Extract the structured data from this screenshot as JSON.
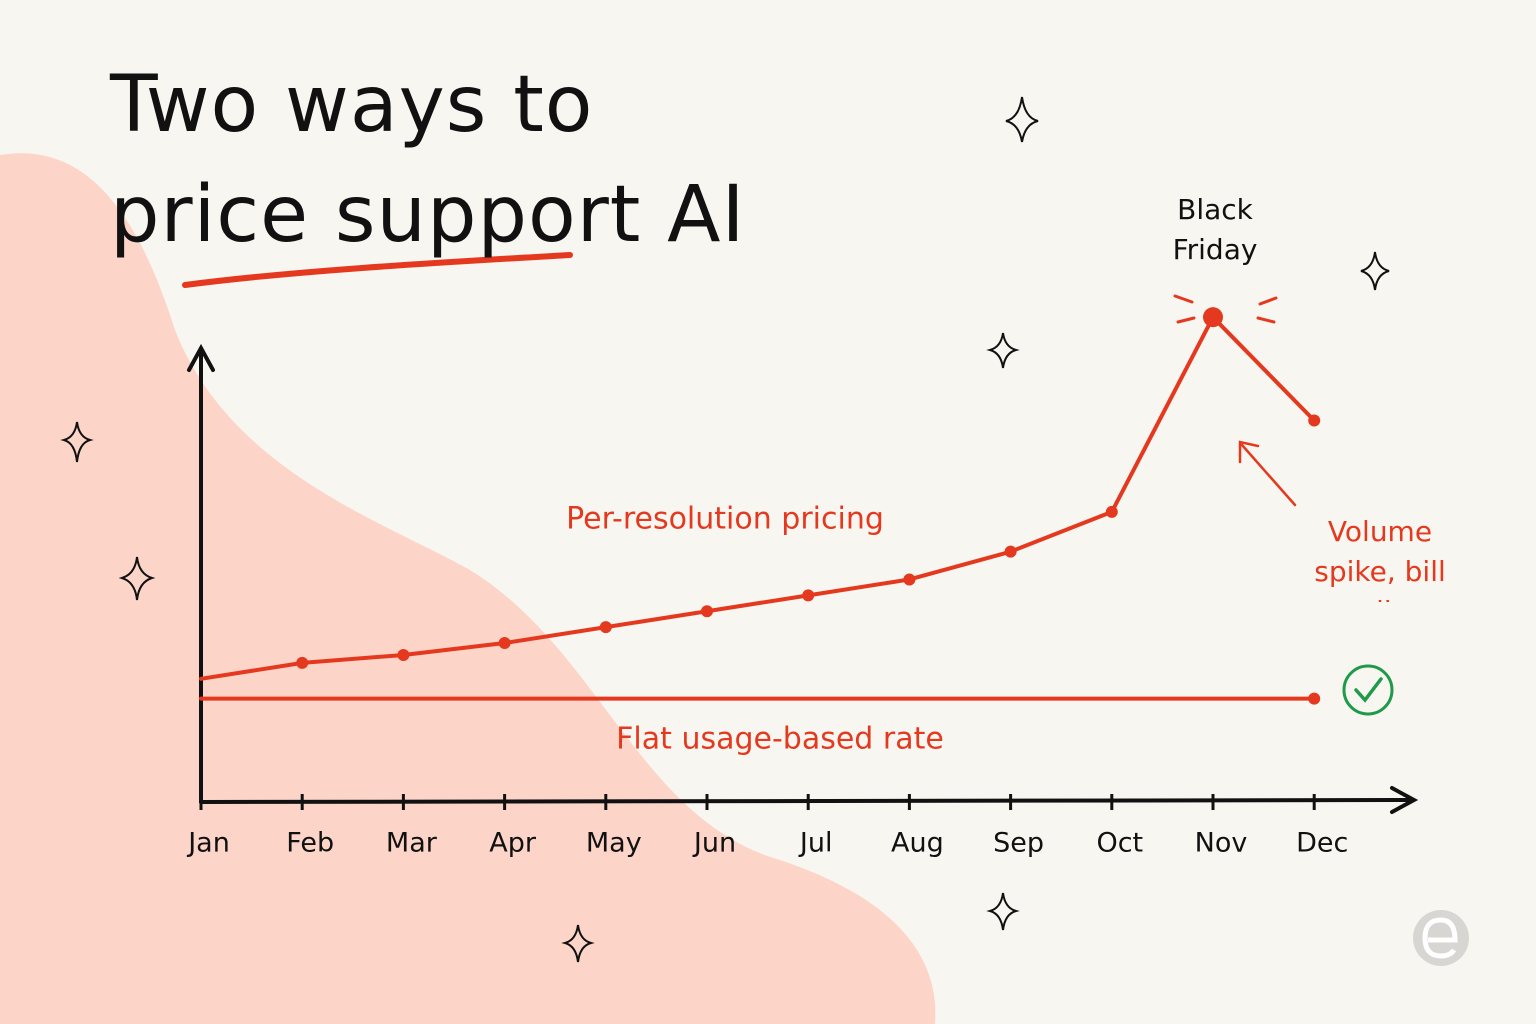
{
  "chart_data": {
    "type": "line",
    "title": "Two ways to price support AI",
    "categories": [
      "Jan",
      "Feb",
      "Mar",
      "Apr",
      "May",
      "Jun",
      "Jul",
      "Aug",
      "Sep",
      "Oct",
      "Nov",
      "Dec"
    ],
    "series": [
      {
        "name": "Per-resolution pricing",
        "color": "#e5391f",
        "values": [
          31,
          35,
          37,
          40,
          44,
          48,
          52,
          56,
          63,
          73,
          122,
          96
        ]
      },
      {
        "name": "Flat usage-based rate",
        "color": "#e5391f",
        "values": [
          26,
          26,
          26,
          26,
          26,
          26,
          26,
          26,
          26,
          26,
          26,
          26
        ]
      }
    ],
    "ylim": [
      0,
      115
    ],
    "annotations": [
      "Black Friday",
      "Volume spike, bill spike"
    ]
  }
}
